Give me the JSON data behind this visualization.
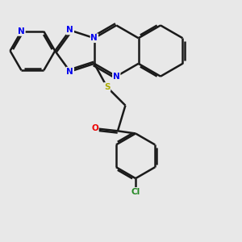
{
  "bg_color": "#e8e8e8",
  "bond_color": "#1a1a1a",
  "bond_width": 1.8,
  "dbo": 0.08,
  "atom_colors": {
    "N": "#0000ee",
    "S": "#aaaa00",
    "O": "#ee0000",
    "Cl": "#228822",
    "C": "#1a1a1a"
  },
  "afs": 7.5
}
